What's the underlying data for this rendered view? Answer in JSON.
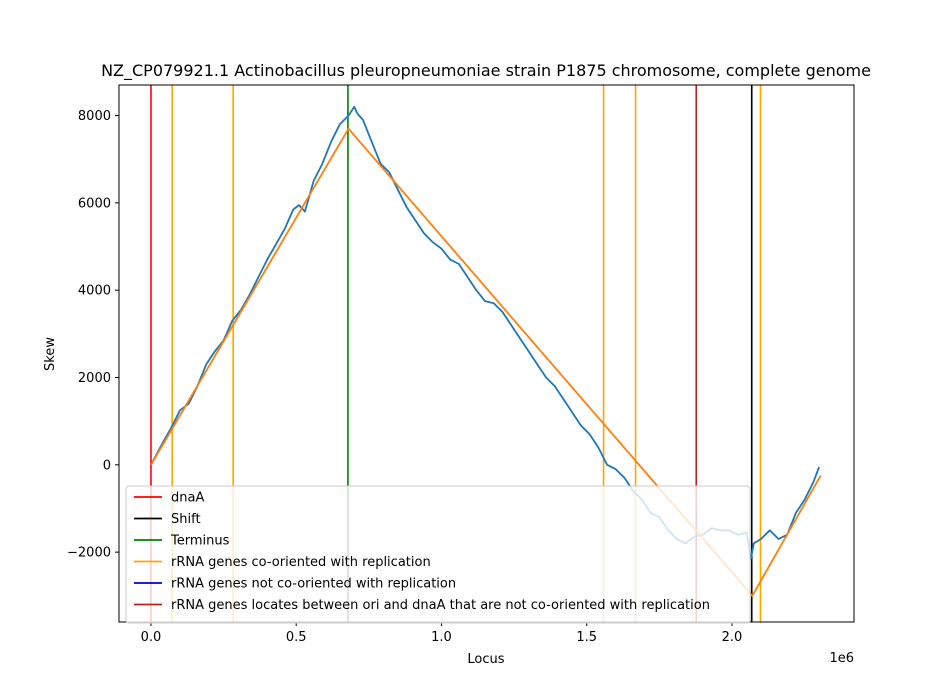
{
  "chart_data": {
    "type": "line",
    "title": "NZ_CP079921.1 Actinobacillus pleuropneumoniae strain P1875 chromosome, complete genome",
    "xlabel": "Locus",
    "ylabel": "Skew",
    "x_offset_label": "1e6",
    "xlim": [
      -110000,
      2420000
    ],
    "ylim": [
      -3600,
      8700
    ],
    "xticks": [
      0,
      500000,
      1000000,
      1500000,
      2000000
    ],
    "xtick_labels": [
      "0.0",
      "0.5",
      "1.0",
      "1.5",
      "2.0"
    ],
    "yticks": [
      -2000,
      0,
      2000,
      4000,
      6000,
      8000
    ],
    "ytick_labels": [
      "−2000",
      "0",
      "2000",
      "4000",
      "6000",
      "8000"
    ],
    "colors": {
      "skew": "#1f77b4",
      "fit": "#ff7f0e",
      "dnaA": "#ff0000",
      "shift": "#000000",
      "terminus": "#008000",
      "rrna_co": "#ffa500",
      "rrna_not": "#0000cd",
      "rrna_between": "#b22222"
    },
    "skew_series": {
      "x": [
        0,
        20000,
        40000,
        70000,
        100000,
        130000,
        160000,
        190000,
        220000,
        250000,
        280000,
        310000,
        340000,
        370000,
        400000,
        430000,
        460000,
        490000,
        510000,
        530000,
        560000,
        590000,
        620000,
        650000,
        680000,
        700000,
        710000,
        730000,
        760000,
        790000,
        820000,
        850000,
        880000,
        910000,
        940000,
        970000,
        1000000,
        1030000,
        1060000,
        1090000,
        1120000,
        1150000,
        1180000,
        1210000,
        1240000,
        1270000,
        1300000,
        1330000,
        1360000,
        1390000,
        1420000,
        1450000,
        1480000,
        1510000,
        1540000,
        1570000,
        1600000,
        1630000,
        1660000,
        1690000,
        1720000,
        1750000,
        1780000,
        1810000,
        1840000,
        1870000,
        1900000,
        1930000,
        1960000,
        1990000,
        2020000,
        2050000,
        2065000,
        2075000,
        2100000,
        2130000,
        2160000,
        2190000,
        2220000,
        2250000,
        2280000,
        2300000
      ],
      "y": [
        0,
        250,
        500,
        850,
        1250,
        1400,
        1800,
        2300,
        2600,
        2850,
        3300,
        3550,
        3900,
        4300,
        4700,
        5050,
        5400,
        5850,
        5950,
        5800,
        6500,
        6900,
        7400,
        7800,
        8000,
        8200,
        8050,
        7900,
        7400,
        6900,
        6700,
        6300,
        5900,
        5600,
        5300,
        5100,
        4950,
        4700,
        4600,
        4300,
        4000,
        3750,
        3700,
        3500,
        3200,
        2900,
        2600,
        2300,
        2000,
        1800,
        1500,
        1200,
        900,
        700,
        400,
        0,
        -100,
        -300,
        -600,
        -800,
        -1100,
        -1200,
        -1500,
        -1700,
        -1800,
        -1650,
        -1600,
        -1450,
        -1500,
        -1500,
        -1600,
        -1550,
        -2150,
        -1800,
        -1700,
        -1500,
        -1700,
        -1600,
        -1100,
        -800,
        -400,
        -50
      ]
    },
    "fit_series": {
      "x": [
        0,
        680000,
        2070000,
        2070000,
        2305000
      ],
      "y": [
        0,
        7700,
        -3000,
        -3000,
        -250
      ]
    },
    "vlines": [
      {
        "kind": "dnaA",
        "x": 0
      },
      {
        "kind": "rrna_co",
        "x": 73000
      },
      {
        "kind": "rrna_co",
        "x": 283000
      },
      {
        "kind": "terminus",
        "x": 678000
      },
      {
        "kind": "rrna_co",
        "x": 1558000
      },
      {
        "kind": "rrna_co",
        "x": 1668000
      },
      {
        "kind": "rrna_between",
        "x": 1877000
      },
      {
        "kind": "shift",
        "x": 2068000
      },
      {
        "kind": "rrna_co",
        "x": 2098000
      }
    ],
    "legend_position": "lower-left",
    "legend": [
      {
        "label": "dnaA",
        "color_key": "dnaA"
      },
      {
        "label": "Shift",
        "color_key": "shift"
      },
      {
        "label": "Terminus",
        "color_key": "terminus"
      },
      {
        "label": "rRNA genes co-oriented with replication",
        "color_key": "rrna_co"
      },
      {
        "label": "rRNA genes not co-oriented with replication",
        "color_key": "rrna_not"
      },
      {
        "label": "rRNA genes locates between ori and dnaA that are not co-oriented with replication",
        "color_key": "rrna_between"
      }
    ]
  }
}
